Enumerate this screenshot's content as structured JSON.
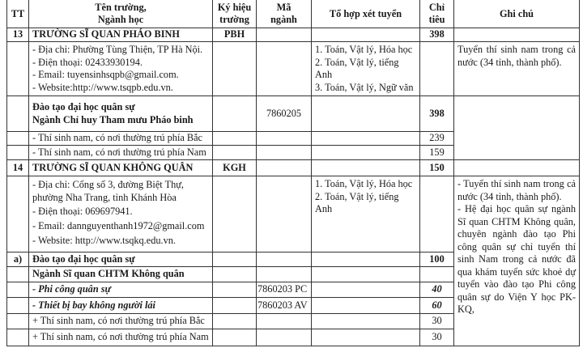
{
  "header": {
    "tt": "TT",
    "name_line1": "Tên trường,",
    "name_line2": "Ngành học",
    "code_line1": "Ký hiệu",
    "code_line2": "trường",
    "major_code_line1": "Mã",
    "major_code_line2": "ngành",
    "combo": "Tổ hợp xét tuyển",
    "quota_line1": "Chỉ",
    "quota_line2": "tiêu",
    "note": "Ghi chú"
  },
  "school13": {
    "tt": "13",
    "name": "TRƯỜNG SĨ QUAN PHÁO BINH",
    "code": "PBH",
    "quota": "398",
    "info": [
      "- Địa chỉ: Phường Tùng Thiện, TP Hà Nội.",
      "- Điện thoại: 02433930194.",
      "- Email: tuyensinhsqpb@gmail.com.",
      "- Website:http://www.tsqpb.edu.vn."
    ],
    "combos": [
      "1. Toán, Vật lý, Hóa học",
      "2. Toán, Vật lý, tiếng Anh",
      "3. Toán, Vật lý, Ngữ văn"
    ],
    "note": "Tuyển thí sinh nam trong cả nước (34 tỉnh, thành phố).",
    "program_line1": "Đào tạo đại học quân sự",
    "program_line2": "Ngành Chỉ huy Tham mưu Pháo binh",
    "program_code": "7860205",
    "program_quota": "398",
    "rows": [
      {
        "label": "- Thí sinh nam, có nơi thường trú phía Bắc",
        "quota": "239"
      },
      {
        "label": "- Thí sinh nam, có nơi thường trú phía Nam",
        "quota": "159"
      }
    ]
  },
  "school14": {
    "tt": "14",
    "name": "TRƯỜNG SĨ QUAN KHÔNG QUÂN",
    "code": "KGH",
    "quota": "150",
    "info": [
      "- Địa chỉ: Cổng số 3, đường Biệt Thự, phường Nha Trang, tỉnh Khánh Hòa",
      "- Điện thoại: 069697941.",
      "- Email: dannguyenthanh1972@gmail.com",
      "- Website: http://www.tsqkq.edu.vn."
    ],
    "combos": [
      "1. Toán, Vật lý, Hóa học",
      "2. Toán, Vật lý, tiếng Anh"
    ],
    "note1": "- Tuyển thí sinh nam trong cả nước (34 tỉnh, thành phố).",
    "note2": "- Hệ đại học quân sự ngành Sĩ quan CHTM Không quân, chuyên ngành đào tạo Phi công quân sự chỉ tuyển thí sinh Nam trong cả nước đã qua khám tuyển sức khoẻ dự tuyển vào đào tạo Phi công quân sự do Viện Y học PK-KQ,",
    "section_tt": "a)",
    "section_label": "Đào tạo đại học quân sự",
    "section_quota": "100",
    "major": "Ngành Sĩ quan CHTM Không quân",
    "specialties": [
      {
        "label": "- Phi công quân sự",
        "code": "7860203 PC",
        "quota": "40"
      },
      {
        "label": "- Thiết bị bay không người lái",
        "code": "7860203 AV",
        "quota": "60"
      }
    ],
    "rows": [
      {
        "label": "+ Thí sinh nam, có nơi thường trú phía Bắc",
        "quota": "30"
      },
      {
        "label": "+ Thí sinh nam, có nơi thường trú phía Nam",
        "quota": "30"
      }
    ]
  }
}
